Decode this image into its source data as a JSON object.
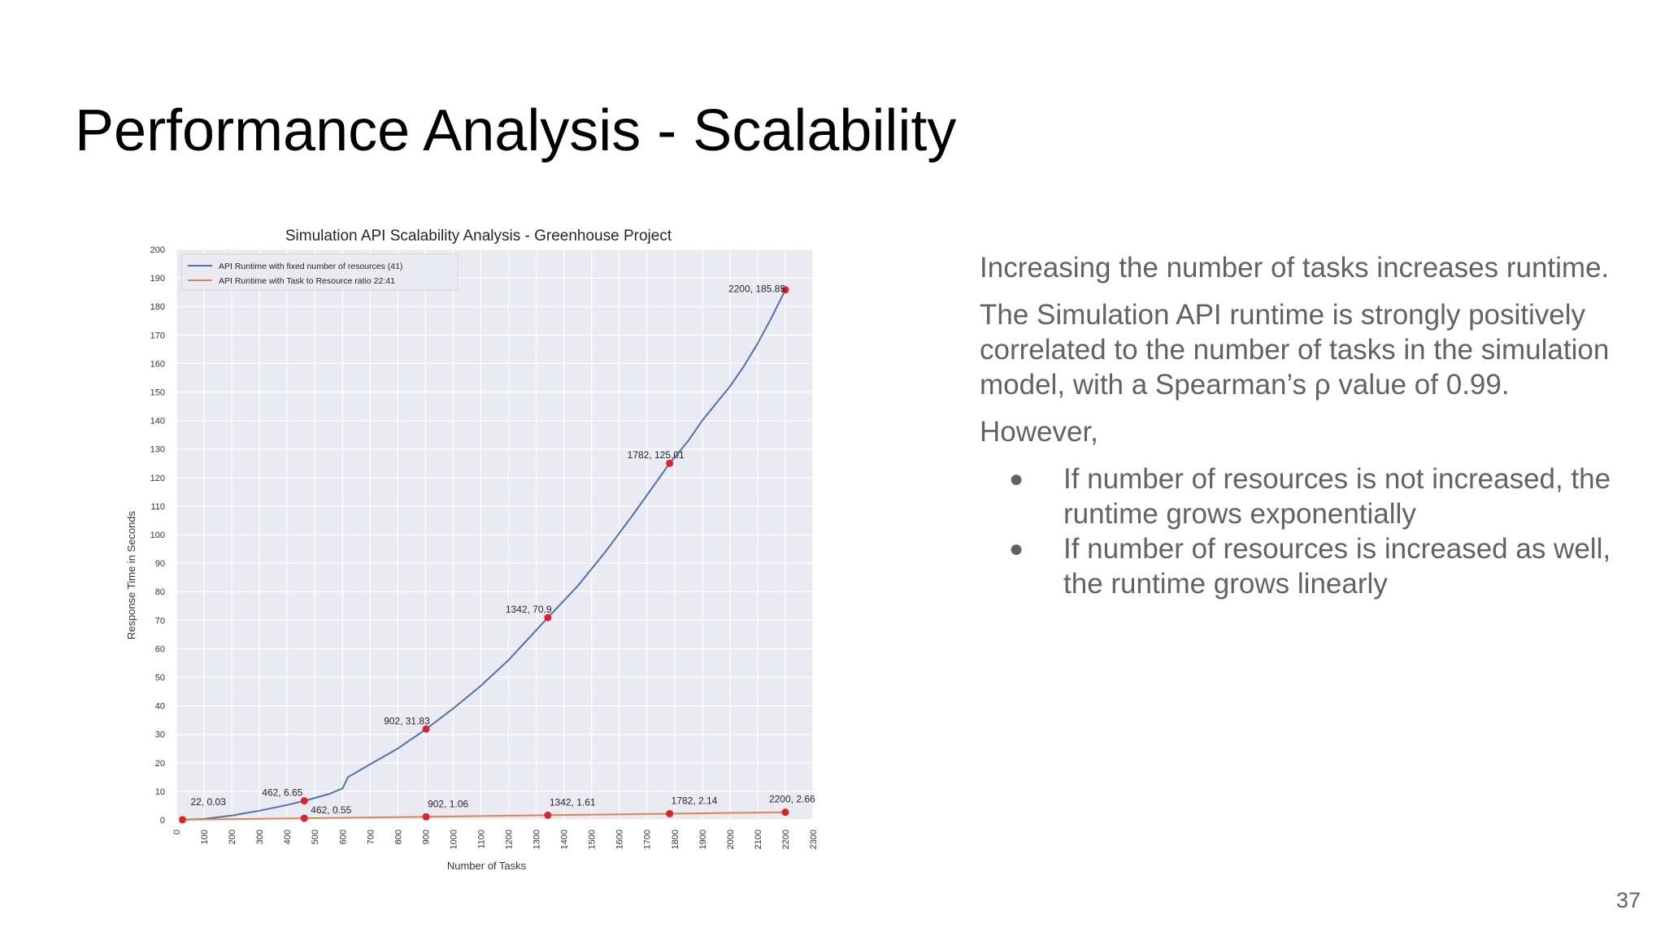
{
  "slide": {
    "title": "Performance Analysis - Scalability",
    "page_number": "37"
  },
  "text": {
    "p1": "Increasing the number of tasks increases runtime.",
    "p2": "The Simulation API runtime is strongly positively correlated to the number of tasks in the simulation model, with a Spearman’s ρ value of 0.99.",
    "p3": "However,",
    "bullets": [
      "If number of resources is not increased, the runtime grows exponentially",
      "If number of resources is increased as well, the runtime grows linearly"
    ],
    "bullet_glyph": "●"
  },
  "chart_data": {
    "type": "line",
    "title": "Simulation API Scalability Analysis - Greenhouse Project",
    "xlabel": "Number of Tasks",
    "ylabel": "Response Time in Seconds",
    "xlim": [
      0,
      2300
    ],
    "ylim": [
      0,
      200
    ],
    "xticks": [
      0,
      100,
      200,
      300,
      400,
      500,
      600,
      700,
      800,
      900,
      1000,
      1100,
      1200,
      1300,
      1400,
      1500,
      1600,
      1700,
      1800,
      1900,
      2000,
      2100,
      2200,
      2300
    ],
    "yticks": [
      0,
      10,
      20,
      30,
      40,
      50,
      60,
      70,
      80,
      90,
      100,
      110,
      120,
      130,
      140,
      150,
      160,
      170,
      180,
      190,
      200
    ],
    "grid": true,
    "legend_position": "top-left",
    "colors": {
      "plot_background": "#eaeaf2",
      "grid": "#ffffff",
      "series_fixed": "#4c72b0",
      "series_ratio": "#dd8452",
      "marker": "#e0202a"
    },
    "series": [
      {
        "name": "API Runtime with fixed number of resources (41)",
        "x": [
          22,
          100,
          200,
          300,
          400,
          462,
          550,
          600,
          620,
          700,
          800,
          902,
          1000,
          1100,
          1200,
          1342,
          1450,
          1550,
          1650,
          1782,
          1850,
          1900,
          1950,
          2000,
          2050,
          2100,
          2150,
          2200
        ],
        "y": [
          0.03,
          0.3,
          1.5,
          3.2,
          5.2,
          6.65,
          9.0,
          11.0,
          15.0,
          19.5,
          25.0,
          31.83,
          39.0,
          47.0,
          56.0,
          70.9,
          82.0,
          94.0,
          107.0,
          125.01,
          133.0,
          140.0,
          146.0,
          152.0,
          159.0,
          167.0,
          176.0,
          185.85
        ],
        "annotations": [
          {
            "x": 22,
            "y": 0.03,
            "label": "22, 0.03"
          },
          {
            "x": 462,
            "y": 6.65,
            "label": "462, 6.65"
          },
          {
            "x": 902,
            "y": 31.83,
            "label": "902, 31.83"
          },
          {
            "x": 1342,
            "y": 70.9,
            "label": "1342, 70.9"
          },
          {
            "x": 1782,
            "y": 125.01,
            "label": "1782, 125.01"
          },
          {
            "x": 2200,
            "y": 185.85,
            "label": "2200, 185.85"
          }
        ]
      },
      {
        "name": "API Runtime with Task to Resource ratio 22:41",
        "x": [
          22,
          462,
          902,
          1342,
          1782,
          2200
        ],
        "y": [
          0.03,
          0.55,
          1.06,
          1.61,
          2.14,
          2.66
        ],
        "annotations": [
          {
            "x": 462,
            "y": 0.55,
            "label": "462, 0.55"
          },
          {
            "x": 902,
            "y": 1.06,
            "label": "902, 1.06"
          },
          {
            "x": 1342,
            "y": 1.61,
            "label": "1342, 1.61"
          },
          {
            "x": 1782,
            "y": 2.14,
            "label": "1782, 2.14"
          },
          {
            "x": 2200,
            "y": 2.66,
            "label": "2200, 2.66"
          }
        ]
      }
    ]
  }
}
